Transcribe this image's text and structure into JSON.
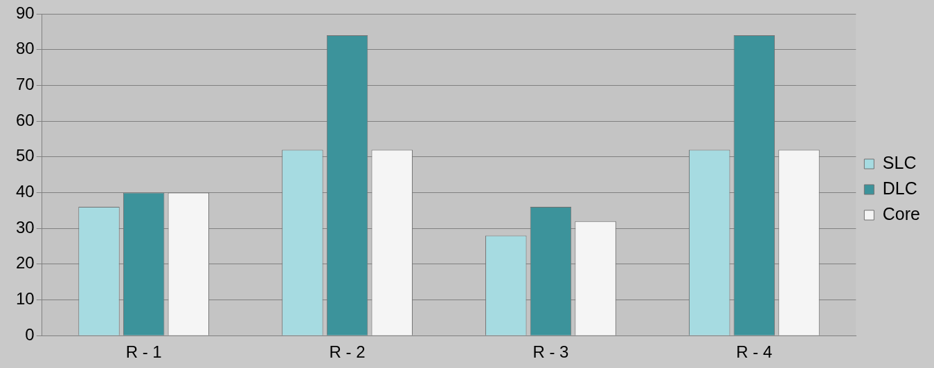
{
  "chart_data": {
    "type": "bar",
    "categories": [
      "R - 1",
      "R - 2",
      "R - 3",
      "R - 4"
    ],
    "series": [
      {
        "name": "SLC",
        "color": "#a6dbe1",
        "values": [
          36,
          52,
          28,
          52
        ]
      },
      {
        "name": "DLC",
        "color": "#3c939b",
        "values": [
          40,
          84,
          36,
          84
        ]
      },
      {
        "name": "Core",
        "color": "#f5f5f5",
        "values": [
          40,
          52,
          32,
          52
        ]
      }
    ],
    "ylim": [
      0,
      90
    ],
    "yticks": [
      0,
      10,
      20,
      30,
      40,
      50,
      60,
      70,
      80,
      90
    ],
    "grid": "y",
    "legend": "right"
  }
}
